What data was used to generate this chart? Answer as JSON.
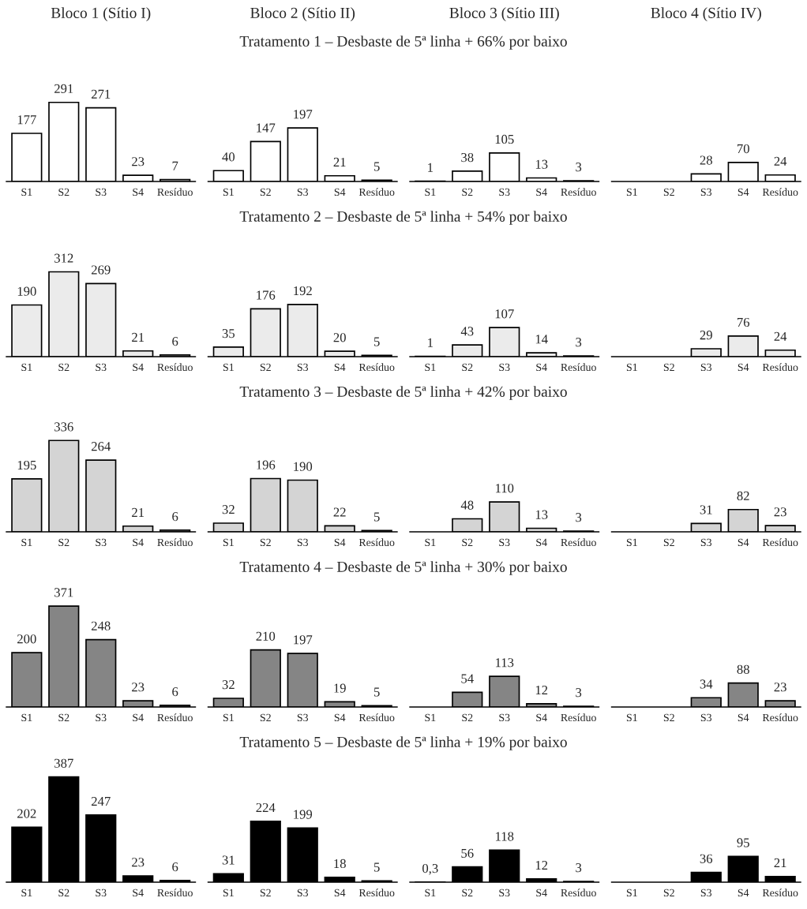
{
  "chart_data": [
    {
      "type": "other",
      "title": "Tratamento 1 – Desbaste de 5ª linha + 66% por baixo"
    },
    {
      "type": "bar",
      "subtitle": "Bloco 1 (Sítio I)",
      "categories": [
        "S1",
        "S2",
        "S3",
        "S4",
        "Resíduo"
      ],
      "values": [
        177,
        291,
        271,
        23,
        7
      ],
      "value_labels": [
        "177",
        "291",
        "271",
        "23",
        "7"
      ],
      "color": "#ffffff",
      "tick_labels": "x"
    },
    {
      "type": "bar",
      "subtitle": "Bloco 2 (Sítio II)",
      "categories": [
        "S1",
        "S2",
        "S3",
        "S4",
        "Resíduo"
      ],
      "values": [
        40,
        147,
        197,
        21,
        5
      ],
      "value_labels": [
        "40",
        "147",
        "197",
        "21",
        "5"
      ],
      "color": "#ffffff",
      "tick_labels": "x"
    },
    {
      "type": "bar",
      "subtitle": "Bloco 3 (Sítio III)",
      "categories": [
        "S1",
        "S2",
        "S3",
        "S4",
        "Resíduo"
      ],
      "values": [
        1,
        38,
        105,
        13,
        3
      ],
      "value_labels": [
        "1",
        "38",
        "105",
        "13",
        "3"
      ],
      "color": "#ffffff",
      "tick_labels": "x"
    },
    {
      "type": "bar",
      "subtitle": "Bloco 4 (Sítio IV)",
      "categories": [
        "S1",
        "S2",
        "S3",
        "S4",
        "Resíduo"
      ],
      "values": [
        null,
        null,
        28,
        70,
        24
      ],
      "value_labels": [
        null,
        null,
        "28",
        "70",
        "24"
      ],
      "color": "#ffffff",
      "tick_labels": "x"
    },
    {
      "type": "other",
      "title": "Tratamento 2 – Desbaste de 5ª linha + 54% por baixo"
    },
    {
      "type": "bar",
      "categories": [
        "S1",
        "S2",
        "S3",
        "S4",
        "Resíduo"
      ],
      "values": [
        190,
        312,
        269,
        21,
        6
      ],
      "value_labels": [
        "190",
        "312",
        "269",
        "21",
        "6"
      ],
      "color": "#ebebeb",
      "tick_labels": "x"
    },
    {
      "type": "bar",
      "categories": [
        "S1",
        "S2",
        "S3",
        "S4",
        "Resíduo"
      ],
      "values": [
        35,
        176,
        192,
        20,
        5
      ],
      "value_labels": [
        "35",
        "176",
        "192",
        "20",
        "5"
      ],
      "color": "#ebebeb",
      "tick_labels": "x"
    },
    {
      "type": "bar",
      "categories": [
        "S1",
        "S2",
        "S3",
        "S4",
        "Resíduo"
      ],
      "values": [
        1,
        43,
        107,
        14,
        3
      ],
      "value_labels": [
        "1",
        "43",
        "107",
        "14",
        "3"
      ],
      "color": "#ebebeb",
      "tick_labels": "x"
    },
    {
      "type": "bar",
      "categories": [
        "S1",
        "S2",
        "S3",
        "S4",
        "Resíduo"
      ],
      "values": [
        null,
        null,
        29,
        76,
        24
      ],
      "value_labels": [
        null,
        null,
        "29",
        "76",
        "24"
      ],
      "color": "#ebebeb",
      "tick_labels": "x"
    },
    {
      "type": "other",
      "title": "Tratamento 3 – Desbaste de 5ª linha + 42% por baixo"
    },
    {
      "type": "bar",
      "categories": [
        "S1",
        "S2",
        "S3",
        "S4",
        "Resíduo"
      ],
      "values": [
        195,
        336,
        264,
        21,
        6
      ],
      "value_labels": [
        "195",
        "336",
        "264",
        "21",
        "6"
      ],
      "color": "#d4d4d4",
      "tick_labels": "x"
    },
    {
      "type": "bar",
      "categories": [
        "S1",
        "S2",
        "S3",
        "S4",
        "Resíduo"
      ],
      "values": [
        32,
        196,
        190,
        22,
        5
      ],
      "value_labels": [
        "32",
        "196",
        "190",
        "22",
        "5"
      ],
      "color": "#d4d4d4",
      "tick_labels": "x"
    },
    {
      "type": "bar",
      "categories": [
        "S1",
        "S2",
        "S3",
        "S4",
        "Resíduo"
      ],
      "values": [
        null,
        48,
        110,
        13,
        3
      ],
      "value_labels": [
        null,
        "48",
        "110",
        "13",
        "3"
      ],
      "color": "#d4d4d4",
      "tick_labels": "x"
    },
    {
      "type": "bar",
      "categories": [
        "S1",
        "S2",
        "S3",
        "S4",
        "Resíduo"
      ],
      "values": [
        null,
        null,
        31,
        82,
        23
      ],
      "value_labels": [
        null,
        null,
        "31",
        "82",
        "23"
      ],
      "color": "#d4d4d4",
      "tick_labels": "x"
    },
    {
      "type": "other",
      "title": "Tratamento 4 – Desbaste de 5ª linha + 30% por baixo"
    },
    {
      "type": "bar",
      "categories": [
        "S1",
        "S2",
        "S3",
        "S4",
        "Resíduo"
      ],
      "values": [
        200,
        371,
        248,
        23,
        6
      ],
      "value_labels": [
        "200",
        "371",
        "248",
        "23",
        "6"
      ],
      "color": "#858585",
      "tick_labels": "x"
    },
    {
      "type": "bar",
      "categories": [
        "S1",
        "S2",
        "S3",
        "S4",
        "Resíduo"
      ],
      "values": [
        32,
        210,
        197,
        19,
        5
      ],
      "value_labels": [
        "32",
        "210",
        "197",
        "19",
        "5"
      ],
      "color": "#858585",
      "tick_labels": "x"
    },
    {
      "type": "bar",
      "categories": [
        "S1",
        "S2",
        "S3",
        "S4",
        "Resíduo"
      ],
      "values": [
        null,
        54,
        113,
        12,
        3
      ],
      "value_labels": [
        null,
        "54",
        "113",
        "12",
        "3"
      ],
      "color": "#858585",
      "tick_labels": "x"
    },
    {
      "type": "bar",
      "categories": [
        "S1",
        "S2",
        "S3",
        "S4",
        "Resíduo"
      ],
      "values": [
        null,
        null,
        34,
        88,
        23
      ],
      "value_labels": [
        null,
        null,
        "34",
        "88",
        "23"
      ],
      "color": "#858585",
      "tick_labels": "x"
    },
    {
      "type": "other",
      "title": "Tratamento 5 – Desbaste de 5ª linha + 19% por baixo"
    },
    {
      "type": "bar",
      "categories": [
        "S1",
        "S2",
        "S3",
        "S4",
        "Resíduo"
      ],
      "values": [
        202,
        387,
        247,
        23,
        6
      ],
      "value_labels": [
        "202",
        "387",
        "247",
        "23",
        "6"
      ],
      "color": "#000000",
      "tick_labels": "x"
    },
    {
      "type": "bar",
      "categories": [
        "S1",
        "S2",
        "S3",
        "S4",
        "Resíduo"
      ],
      "values": [
        31,
        224,
        199,
        18,
        5
      ],
      "value_labels": [
        "31",
        "224",
        "199",
        "18",
        "5"
      ],
      "color": "#000000",
      "tick_labels": "x"
    },
    {
      "type": "bar",
      "categories": [
        "S1",
        "S2",
        "S3",
        "S4",
        "Resíduo"
      ],
      "values": [
        0.3,
        56,
        118,
        12,
        3
      ],
      "value_labels": [
        "0,3",
        "56",
        "118",
        "12",
        "3"
      ],
      "color": "#000000",
      "tick_labels": "x"
    },
    {
      "type": "bar",
      "categories": [
        "S1",
        "S2",
        "S3",
        "S4",
        "Resíduo"
      ],
      "values": [
        null,
        null,
        36,
        95,
        21
      ],
      "value_labels": [
        null,
        null,
        "36",
        "95",
        "21"
      ],
      "color": "#000000",
      "tick_labels": "x"
    }
  ]
}
